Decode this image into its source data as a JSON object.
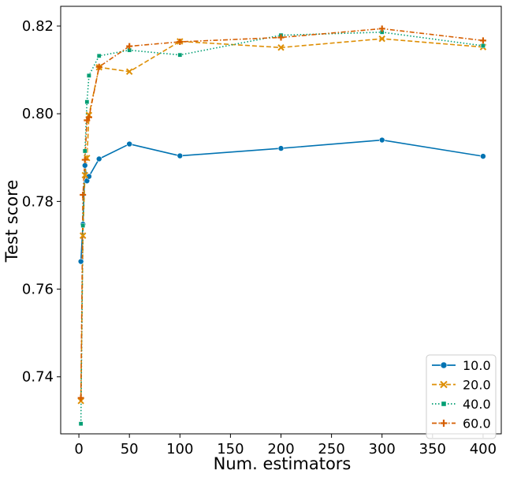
{
  "chart_data": {
    "type": "line",
    "xlabel": "Num. estimators",
    "ylabel": "Test score",
    "xlim": [
      -18,
      418
    ],
    "ylim": [
      0.727,
      0.8245
    ],
    "xticks": [
      0,
      50,
      100,
      150,
      200,
      250,
      300,
      350,
      400
    ],
    "xtick_labels": [
      "0",
      "50",
      "100",
      "150",
      "200",
      "250",
      "300",
      "350",
      "400"
    ],
    "yticks": [
      0.74,
      0.76,
      0.78,
      0.8,
      0.82
    ],
    "ytick_labels": [
      "0.74",
      "0.76",
      "0.78",
      "0.80",
      "0.82"
    ],
    "grid": false,
    "legend_position": "lower-right",
    "series": [
      {
        "name": "10.0",
        "color": "#0173b2",
        "line_style": "solid",
        "marker": "circle",
        "x": [
          2,
          4,
          6,
          8,
          10,
          20,
          50,
          100,
          200,
          300,
          400
        ],
        "y": [
          0.7663,
          0.7748,
          0.7882,
          0.7847,
          0.7857,
          0.7897,
          0.7931,
          0.7904,
          0.7921,
          0.794,
          0.7903
        ]
      },
      {
        "name": "20.0",
        "color": "#de8f05",
        "line_style": "dashed",
        "marker": "x",
        "x": [
          2,
          4,
          6,
          8,
          10,
          20,
          50,
          100,
          200,
          300,
          400
        ],
        "y": [
          0.7345,
          0.7722,
          0.786,
          0.7899,
          0.7997,
          0.8106,
          0.8096,
          0.8165,
          0.8151,
          0.8171,
          0.8152
        ]
      },
      {
        "name": "40.0",
        "color": "#029e73",
        "line_style": "dotted",
        "marker": "square",
        "x": [
          2,
          4,
          6,
          8,
          10,
          20,
          50,
          100,
          200,
          300,
          400
        ],
        "y": [
          0.7293,
          0.7745,
          0.7915,
          0.8027,
          0.8087,
          0.8132,
          0.8145,
          0.8134,
          0.8179,
          0.8186,
          0.8155
        ]
      },
      {
        "name": "60.0",
        "color": "#d55e00",
        "line_style": "dashdot",
        "marker": "plus",
        "x": [
          2,
          4,
          6,
          8,
          10,
          20,
          50,
          100,
          200,
          300,
          400
        ],
        "y": [
          0.7352,
          0.7815,
          0.7895,
          0.7985,
          0.7992,
          0.8107,
          0.8154,
          0.8164,
          0.8174,
          0.8194,
          0.8167
        ]
      }
    ]
  }
}
